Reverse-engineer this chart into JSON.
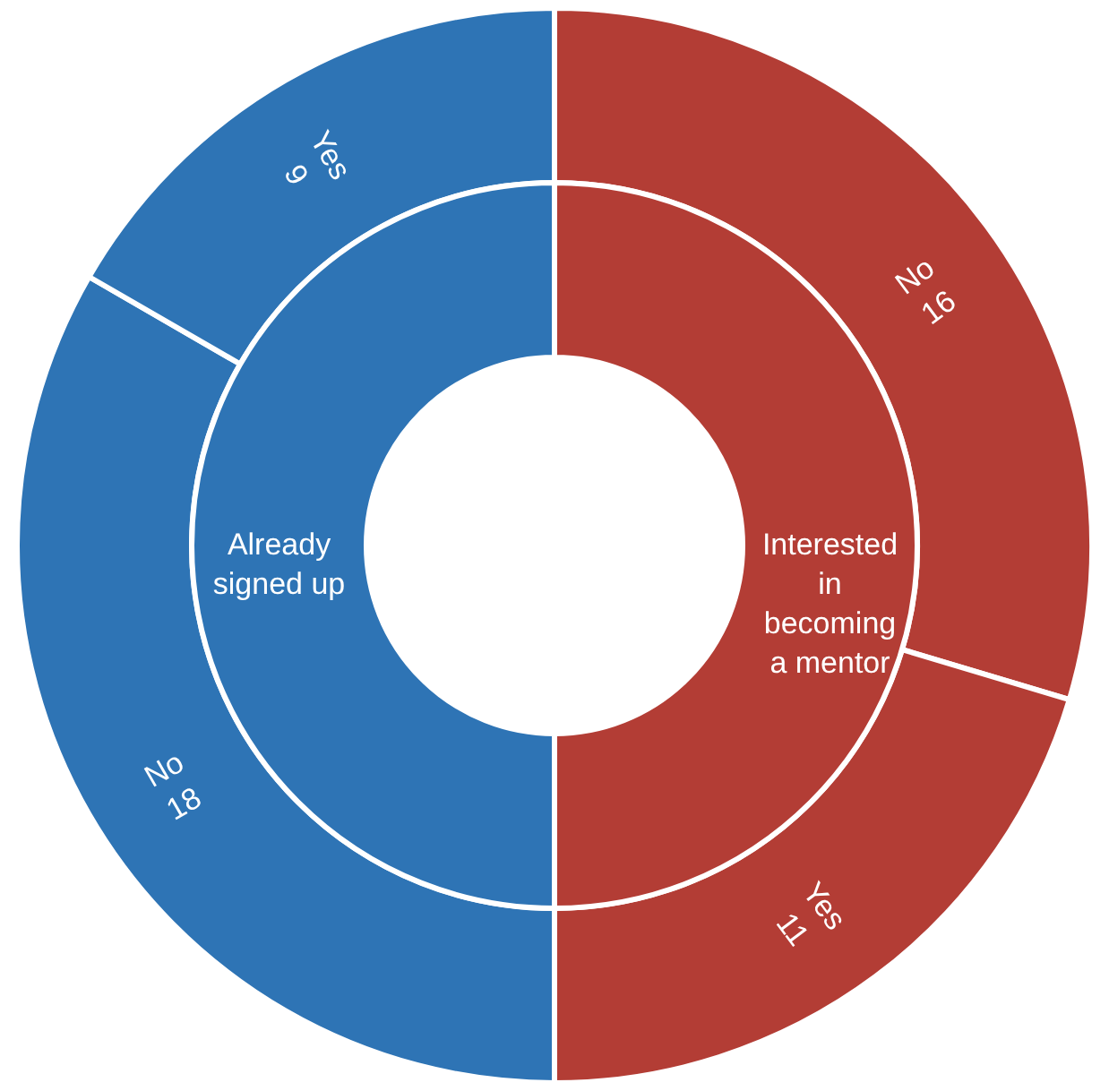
{
  "chart_data": [
    {
      "type": "donut",
      "categories": [
        "Interested in becoming a mentor",
        "Already signed up"
      ],
      "values": [
        50,
        50
      ],
      "colors": [
        "#b33d35",
        "#2e74b5"
      ]
    },
    {
      "type": "donut",
      "categories": [
        "No",
        "Yes",
        "No",
        "Yes"
      ],
      "values": [
        16,
        11,
        18,
        9
      ],
      "colors": [
        "#b33d35",
        "#b33d35",
        "#2e74b5",
        "#2e74b5"
      ],
      "data_labels": true
    }
  ]
}
